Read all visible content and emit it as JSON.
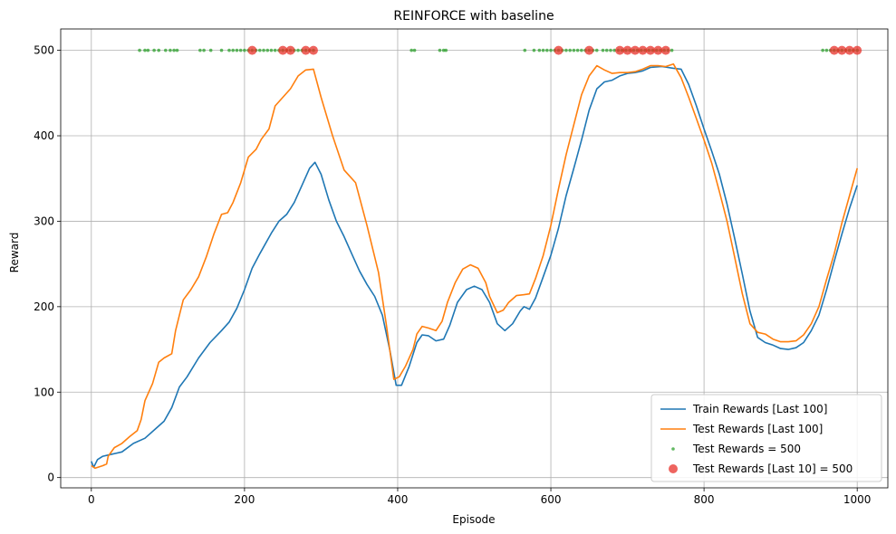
{
  "chart_data": {
    "type": "line",
    "title": "REINFORCE with baseline",
    "xlabel": "Episode",
    "ylabel": "Reward",
    "xlim": [
      -40,
      1040
    ],
    "ylim": [
      -12,
      525
    ],
    "xticks": [
      0,
      200,
      400,
      600,
      800,
      1000
    ],
    "yticks": [
      0,
      100,
      200,
      300,
      400,
      500
    ],
    "grid": true,
    "legend_position": "lower right",
    "colors": {
      "train": "#1f77b4",
      "test": "#ff7f0e",
      "test500": "#2ca02c",
      "last10": "#e8302a"
    },
    "series": [
      {
        "name": "Train Rewards [Last 100]",
        "kind": "line",
        "points": [
          [
            0,
            19
          ],
          [
            3,
            12
          ],
          [
            8,
            21
          ],
          [
            15,
            25
          ],
          [
            25,
            27
          ],
          [
            40,
            30
          ],
          [
            55,
            40
          ],
          [
            70,
            46
          ],
          [
            85,
            58
          ],
          [
            95,
            66
          ],
          [
            105,
            82
          ],
          [
            115,
            106
          ],
          [
            125,
            118
          ],
          [
            140,
            140
          ],
          [
            155,
            158
          ],
          [
            170,
            172
          ],
          [
            180,
            182
          ],
          [
            190,
            198
          ],
          [
            200,
            220
          ],
          [
            210,
            245
          ],
          [
            220,
            262
          ],
          [
            235,
            286
          ],
          [
            245,
            300
          ],
          [
            255,
            308
          ],
          [
            265,
            322
          ],
          [
            275,
            342
          ],
          [
            285,
            362
          ],
          [
            292,
            369
          ],
          [
            300,
            355
          ],
          [
            310,
            325
          ],
          [
            320,
            300
          ],
          [
            330,
            282
          ],
          [
            340,
            262
          ],
          [
            350,
            242
          ],
          [
            360,
            226
          ],
          [
            370,
            212
          ],
          [
            380,
            190
          ],
          [
            390,
            148
          ],
          [
            398,
            108
          ],
          [
            405,
            108
          ],
          [
            415,
            130
          ],
          [
            425,
            158
          ],
          [
            432,
            167
          ],
          [
            440,
            166
          ],
          [
            450,
            160
          ],
          [
            460,
            162
          ],
          [
            468,
            178
          ],
          [
            478,
            205
          ],
          [
            490,
            220
          ],
          [
            500,
            224
          ],
          [
            510,
            220
          ],
          [
            520,
            205
          ],
          [
            530,
            180
          ],
          [
            540,
            172
          ],
          [
            550,
            180
          ],
          [
            560,
            195
          ],
          [
            565,
            200
          ],
          [
            572,
            197
          ],
          [
            580,
            210
          ],
          [
            590,
            235
          ],
          [
            600,
            260
          ],
          [
            610,
            292
          ],
          [
            620,
            330
          ],
          [
            630,
            362
          ],
          [
            640,
            395
          ],
          [
            650,
            430
          ],
          [
            660,
            455
          ],
          [
            670,
            463
          ],
          [
            680,
            465
          ],
          [
            690,
            470
          ],
          [
            700,
            473
          ],
          [
            710,
            474
          ],
          [
            720,
            476
          ],
          [
            730,
            480
          ],
          [
            745,
            481
          ],
          [
            760,
            479
          ],
          [
            770,
            478
          ],
          [
            780,
            460
          ],
          [
            790,
            435
          ],
          [
            800,
            408
          ],
          [
            810,
            382
          ],
          [
            820,
            355
          ],
          [
            830,
            320
          ],
          [
            840,
            280
          ],
          [
            850,
            238
          ],
          [
            860,
            195
          ],
          [
            870,
            164
          ],
          [
            880,
            158
          ],
          [
            890,
            155
          ],
          [
            900,
            151
          ],
          [
            910,
            150
          ],
          [
            920,
            152
          ],
          [
            930,
            158
          ],
          [
            940,
            172
          ],
          [
            950,
            190
          ],
          [
            960,
            220
          ],
          [
            970,
            253
          ],
          [
            980,
            285
          ],
          [
            990,
            315
          ],
          [
            1000,
            342
          ]
        ]
      },
      {
        "name": "Test Rewards [Last 100]",
        "kind": "line",
        "points": [
          [
            0,
            14
          ],
          [
            5,
            11
          ],
          [
            15,
            14
          ],
          [
            20,
            16
          ],
          [
            22,
            25
          ],
          [
            30,
            35
          ],
          [
            40,
            40
          ],
          [
            50,
            48
          ],
          [
            60,
            55
          ],
          [
            65,
            68
          ],
          [
            70,
            90
          ],
          [
            80,
            110
          ],
          [
            88,
            135
          ],
          [
            95,
            140
          ],
          [
            105,
            145
          ],
          [
            110,
            172
          ],
          [
            115,
            190
          ],
          [
            120,
            208
          ],
          [
            130,
            220
          ],
          [
            140,
            235
          ],
          [
            150,
            258
          ],
          [
            160,
            285
          ],
          [
            170,
            308
          ],
          [
            178,
            310
          ],
          [
            185,
            322
          ],
          [
            195,
            345
          ],
          [
            205,
            375
          ],
          [
            215,
            384
          ],
          [
            222,
            396
          ],
          [
            232,
            408
          ],
          [
            240,
            435
          ],
          [
            250,
            445
          ],
          [
            260,
            455
          ],
          [
            270,
            470
          ],
          [
            280,
            477
          ],
          [
            290,
            478
          ],
          [
            300,
            445
          ],
          [
            315,
            400
          ],
          [
            330,
            360
          ],
          [
            345,
            345
          ],
          [
            360,
            295
          ],
          [
            375,
            240
          ],
          [
            385,
            180
          ],
          [
            395,
            115
          ],
          [
            402,
            118
          ],
          [
            410,
            130
          ],
          [
            420,
            150
          ],
          [
            425,
            168
          ],
          [
            432,
            177
          ],
          [
            440,
            175
          ],
          [
            450,
            172
          ],
          [
            458,
            183
          ],
          [
            465,
            205
          ],
          [
            475,
            228
          ],
          [
            485,
            244
          ],
          [
            495,
            249
          ],
          [
            505,
            245
          ],
          [
            515,
            228
          ],
          [
            520,
            212
          ],
          [
            530,
            193
          ],
          [
            538,
            196
          ],
          [
            545,
            205
          ],
          [
            555,
            213
          ],
          [
            565,
            214
          ],
          [
            572,
            215
          ],
          [
            580,
            233
          ],
          [
            590,
            260
          ],
          [
            600,
            295
          ],
          [
            610,
            338
          ],
          [
            620,
            378
          ],
          [
            630,
            413
          ],
          [
            640,
            448
          ],
          [
            650,
            470
          ],
          [
            660,
            482
          ],
          [
            670,
            477
          ],
          [
            680,
            473
          ],
          [
            690,
            474
          ],
          [
            700,
            474
          ],
          [
            710,
            475
          ],
          [
            720,
            478
          ],
          [
            730,
            482
          ],
          [
            740,
            482
          ],
          [
            750,
            481
          ],
          [
            760,
            484
          ],
          [
            770,
            468
          ],
          [
            780,
            445
          ],
          [
            790,
            420
          ],
          [
            800,
            395
          ],
          [
            810,
            368
          ],
          [
            820,
            335
          ],
          [
            830,
            300
          ],
          [
            840,
            258
          ],
          [
            850,
            215
          ],
          [
            860,
            180
          ],
          [
            870,
            170
          ],
          [
            880,
            168
          ],
          [
            890,
            162
          ],
          [
            900,
            159
          ],
          [
            910,
            159
          ],
          [
            920,
            160
          ],
          [
            930,
            167
          ],
          [
            940,
            180
          ],
          [
            950,
            200
          ],
          [
            960,
            232
          ],
          [
            970,
            262
          ],
          [
            980,
            298
          ],
          [
            990,
            330
          ],
          [
            1000,
            362
          ]
        ]
      },
      {
        "name": "Test Rewards = 500",
        "kind": "scatter",
        "x": [
          63,
          70,
          74,
          82,
          88,
          97,
          103,
          108,
          112,
          142,
          147,
          156,
          170,
          180,
          185,
          190,
          195,
          200,
          205,
          210,
          215,
          220,
          225,
          230,
          235,
          240,
          245,
          250,
          255,
          260,
          265,
          270,
          275,
          280,
          285,
          290,
          418,
          422,
          455,
          460,
          463,
          566,
          578,
          585,
          590,
          595,
          600,
          605,
          610,
          615,
          620,
          625,
          630,
          635,
          640,
          645,
          650,
          655,
          660,
          668,
          673,
          678,
          683,
          688,
          693,
          698,
          703,
          708,
          713,
          718,
          723,
          728,
          733,
          738,
          743,
          748,
          753,
          758,
          955,
          960,
          965,
          970,
          975,
          980,
          985,
          990,
          995,
          1000
        ],
        "y": 500
      },
      {
        "name": "Test Rewards [Last 10] = 500",
        "kind": "scatter",
        "x": [
          210,
          250,
          260,
          280,
          290,
          610,
          650,
          690,
          700,
          710,
          720,
          730,
          740,
          750,
          970,
          980,
          990,
          1000
        ],
        "y": 500
      }
    ]
  }
}
